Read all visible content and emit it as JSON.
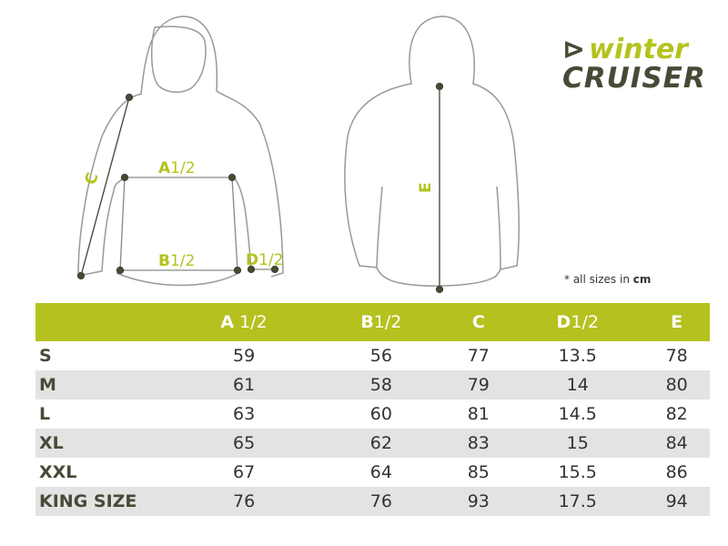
{
  "logo": {
    "line1": "winter",
    "line2": "CRUISER"
  },
  "diagram_labels": {
    "a": "A",
    "a_suffix": "1/2",
    "b": "B",
    "b_suffix": "1/2",
    "c": "C",
    "d": "D",
    "d_suffix": "1/2",
    "e": "E"
  },
  "note": {
    "text": "* all sizes in",
    "unit": "cm"
  },
  "colors": {
    "accent": "#b5c11f",
    "dark": "#464b37",
    "row_alt": "#e3e3e3"
  },
  "table": {
    "headers": [
      {
        "letter": "A",
        "suffix": " 1/2"
      },
      {
        "letter": "B",
        "suffix": "1/2"
      },
      {
        "letter": "C",
        "suffix": ""
      },
      {
        "letter": "D",
        "suffix": "1/2"
      },
      {
        "letter": "E",
        "suffix": ""
      }
    ],
    "rows": [
      {
        "size": "S",
        "values": [
          "59",
          "56",
          "77",
          "13.5",
          "78"
        ]
      },
      {
        "size": "M",
        "values": [
          "61",
          "58",
          "79",
          "14",
          "80"
        ]
      },
      {
        "size": "L",
        "values": [
          "63",
          "60",
          "81",
          "14.5",
          "82"
        ]
      },
      {
        "size": "XL",
        "values": [
          "65",
          "62",
          "83",
          "15",
          "84"
        ]
      },
      {
        "size": "XXL",
        "values": [
          "67",
          "64",
          "85",
          "15.5",
          "86"
        ]
      },
      {
        "size": "KING SIZE",
        "values": [
          "76",
          "76",
          "93",
          "17.5",
          "94"
        ]
      }
    ]
  }
}
